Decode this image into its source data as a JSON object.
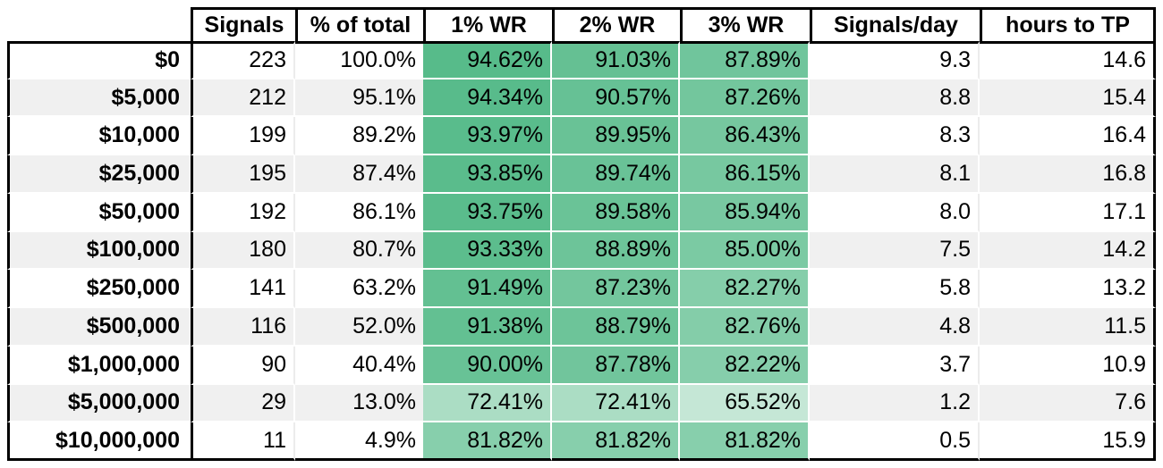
{
  "table": {
    "columns": [
      {
        "label": ""
      },
      {
        "label": "Signals"
      },
      {
        "label": "% of total"
      },
      {
        "label": "1% WR"
      },
      {
        "label": "2% WR"
      },
      {
        "label": "3% WR"
      },
      {
        "label": "Signals/day"
      },
      {
        "label": "hours to TP"
      }
    ],
    "rows": [
      {
        "label": "$0",
        "signals": "223",
        "pct_of_total": "100.0%",
        "wr1": 94.62,
        "wr2": 91.03,
        "wr3": 87.89,
        "signals_per_day": "9.3",
        "hours_to_tp": "14.6"
      },
      {
        "label": "$5,000",
        "signals": "212",
        "pct_of_total": "95.1%",
        "wr1": 94.34,
        "wr2": 90.57,
        "wr3": 87.26,
        "signals_per_day": "8.8",
        "hours_to_tp": "15.4"
      },
      {
        "label": "$10,000",
        "signals": "199",
        "pct_of_total": "89.2%",
        "wr1": 93.97,
        "wr2": 89.95,
        "wr3": 86.43,
        "signals_per_day": "8.3",
        "hours_to_tp": "16.4"
      },
      {
        "label": "$25,000",
        "signals": "195",
        "pct_of_total": "87.4%",
        "wr1": 93.85,
        "wr2": 89.74,
        "wr3": 86.15,
        "signals_per_day": "8.1",
        "hours_to_tp": "16.8"
      },
      {
        "label": "$50,000",
        "signals": "192",
        "pct_of_total": "86.1%",
        "wr1": 93.75,
        "wr2": 89.58,
        "wr3": 85.94,
        "signals_per_day": "8.0",
        "hours_to_tp": "17.1"
      },
      {
        "label": "$100,000",
        "signals": "180",
        "pct_of_total": "80.7%",
        "wr1": 93.33,
        "wr2": 88.89,
        "wr3": 85.0,
        "signals_per_day": "7.5",
        "hours_to_tp": "14.2"
      },
      {
        "label": "$250,000",
        "signals": "141",
        "pct_of_total": "63.2%",
        "wr1": 91.49,
        "wr2": 87.23,
        "wr3": 82.27,
        "signals_per_day": "5.8",
        "hours_to_tp": "13.2"
      },
      {
        "label": "$500,000",
        "signals": "116",
        "pct_of_total": "52.0%",
        "wr1": 91.38,
        "wr2": 88.79,
        "wr3": 82.76,
        "signals_per_day": "4.8",
        "hours_to_tp": "11.5"
      },
      {
        "label": "$1,000,000",
        "signals": "90",
        "pct_of_total": "40.4%",
        "wr1": 90.0,
        "wr2": 87.78,
        "wr3": 82.22,
        "signals_per_day": "3.7",
        "hours_to_tp": "10.9"
      },
      {
        "label": "$5,000,000",
        "signals": "29",
        "pct_of_total": "13.0%",
        "wr1": 72.41,
        "wr2": 72.41,
        "wr3": 65.52,
        "signals_per_day": "1.2",
        "hours_to_tp": "7.6"
      },
      {
        "label": "$10,000,000",
        "signals": "11",
        "pct_of_total": "4.9%",
        "wr1": 81.82,
        "wr2": 81.82,
        "wr3": 81.82,
        "signals_per_day": "0.5",
        "hours_to_tp": "15.9"
      }
    ]
  },
  "heatmap": {
    "columns": [
      "wr1",
      "wr2",
      "wr3"
    ],
    "min_value": 50,
    "max_value": 94.62,
    "min_color": "#ffffff",
    "max_color": "#57bb8a",
    "value_suffix": "%"
  },
  "colors": {
    "background": "#ffffff",
    "border": "#000000",
    "text": "#000000",
    "row_stripe": "#f0f0f0",
    "gridline": "#ececec",
    "heatmap_green": "#57bb8a"
  }
}
